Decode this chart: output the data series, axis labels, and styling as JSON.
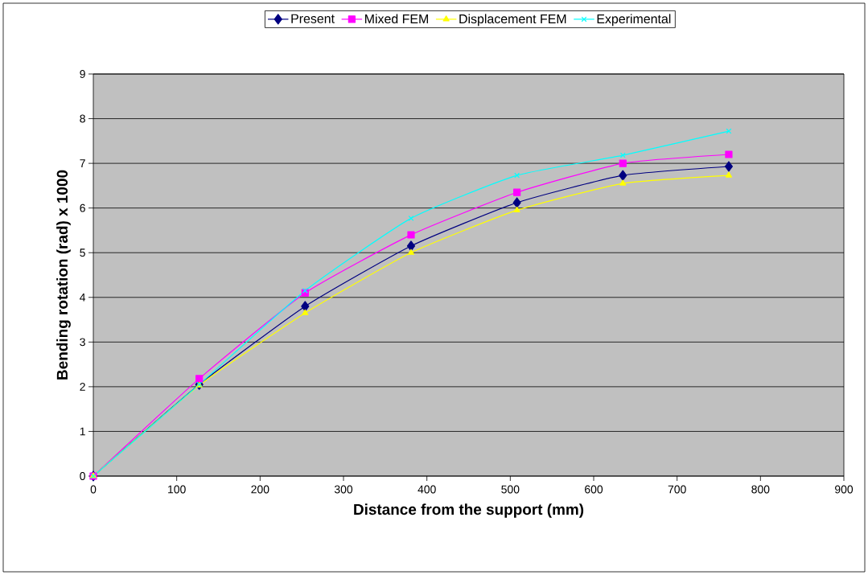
{
  "chart_data": {
    "type": "line",
    "xlabel": "Distance from the support (mm)",
    "ylabel": "Bending rotation (rad) x 1000",
    "x": [
      0,
      127,
      254,
      381,
      508,
      635,
      762
    ],
    "series": [
      {
        "name": "Present",
        "color": "#000080",
        "marker": "diamond",
        "values": [
          0,
          2.05,
          3.8,
          5.15,
          6.12,
          6.73,
          6.93
        ]
      },
      {
        "name": "Mixed FEM",
        "color": "#ff00ff",
        "marker": "square",
        "values": [
          0,
          2.18,
          4.1,
          5.4,
          6.35,
          7.0,
          7.2
        ]
      },
      {
        "name": "Displacement FEM",
        "color": "#ffff00",
        "marker": "triangle",
        "values": [
          0,
          2.03,
          3.65,
          5.0,
          5.95,
          6.55,
          6.73
        ]
      },
      {
        "name": "Experimental",
        "color": "#00ffff",
        "marker": "cross",
        "values": [
          0,
          2.05,
          4.15,
          5.77,
          6.73,
          7.18,
          7.72
        ]
      }
    ],
    "xlim": [
      0,
      900
    ],
    "xticks": [
      0,
      100,
      200,
      300,
      400,
      500,
      600,
      700,
      800,
      900
    ],
    "ylim": [
      0,
      9
    ],
    "yticks": [
      0,
      1,
      2,
      3,
      4,
      5,
      6,
      7,
      8,
      9
    ],
    "grid": "y",
    "legend": "top",
    "line_style": "solid"
  }
}
